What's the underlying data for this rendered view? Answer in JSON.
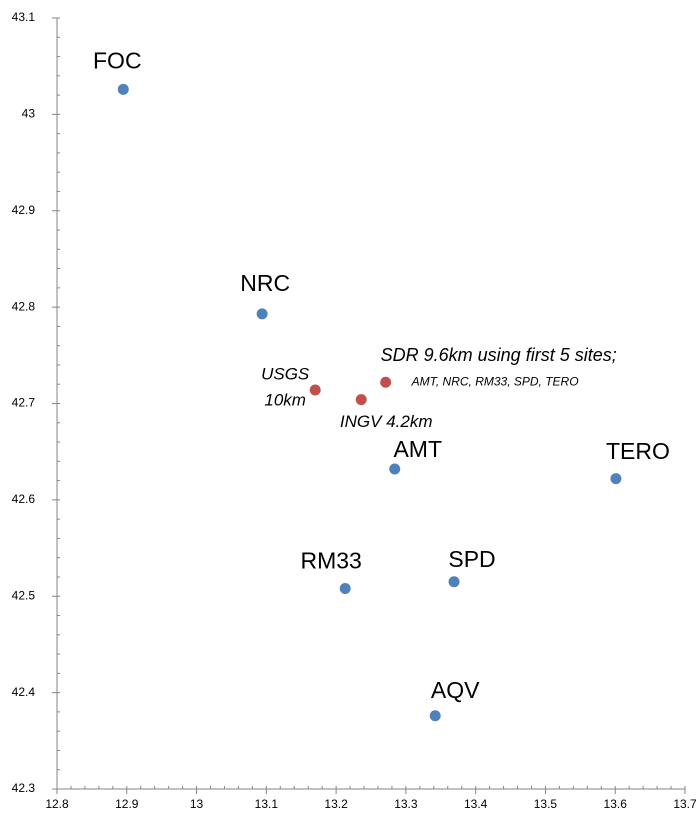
{
  "chart_data": {
    "type": "scatter",
    "xlim": [
      12.8,
      13.7
    ],
    "xticks": [
      12.8,
      12.9,
      13,
      13.1,
      13.2,
      13.3,
      13.4,
      13.5,
      13.6,
      13.7
    ],
    "ylim": [
      42.3,
      43.1
    ],
    "yticks": [
      42.3,
      42.4,
      42.5,
      42.6,
      42.7,
      42.8,
      42.9,
      43,
      43.1
    ],
    "grid": false,
    "points": [
      {
        "label": [
          "FOC"
        ],
        "x": 12.895,
        "y": 43.026,
        "color": "#4f81bd",
        "style": "normal"
      },
      {
        "label": [
          "NRC"
        ],
        "x": 13.094,
        "y": 42.793,
        "color": "#4f81bd",
        "style": "normal"
      },
      {
        "label": [
          "AMT"
        ],
        "x": 13.284,
        "y": 42.632,
        "color": "#4f81bd",
        "style": "normal"
      },
      {
        "label": [
          "TERO"
        ],
        "x": 13.601,
        "y": 42.622,
        "color": "#4f81bd",
        "style": "normal"
      },
      {
        "label": [
          "RM33"
        ],
        "x": 13.213,
        "y": 42.508,
        "color": "#4f81bd",
        "style": "normal"
      },
      {
        "label": [
          "SPD"
        ],
        "x": 13.369,
        "y": 42.515,
        "color": "#4f81bd",
        "style": "normal"
      },
      {
        "label": [
          "AQV"
        ],
        "x": 13.342,
        "y": 42.376,
        "color": "#4f81bd",
        "style": "normal"
      },
      {
        "label": [
          "USGS",
          "10km"
        ],
        "x": 13.17,
        "y": 42.714,
        "color": "#c0504d",
        "style": "italic"
      },
      {
        "label": [
          "INGV 4.2km"
        ],
        "x": 13.236,
        "y": 42.704,
        "color": "#c0504d",
        "style": "italic"
      },
      {
        "label": [
          "SDR 9.6km using first 5 sites;",
          "AMT, NRC, RM33, SPD, TERO"
        ],
        "x": 13.271,
        "y": 42.722,
        "color": "#c0504d",
        "style": "italic"
      }
    ]
  }
}
